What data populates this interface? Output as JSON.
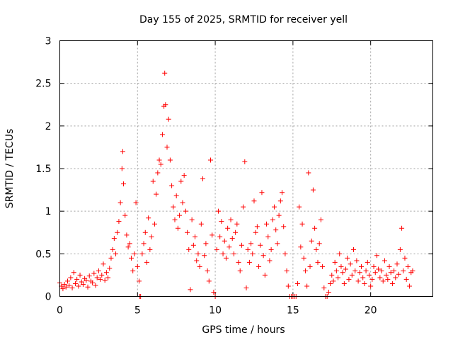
{
  "chart_data": {
    "type": "scatter",
    "title": "Day 155 of 2025, SRMTID for receiver yell",
    "xlabel": "GPS time / hours",
    "ylabel": "SRMTID / TECUs",
    "xlim": [
      0,
      24
    ],
    "ylim": [
      0,
      3
    ],
    "xticks": [
      0,
      5,
      10,
      15,
      20
    ],
    "yticks": [
      0,
      0.5,
      1,
      1.5,
      2,
      2.5,
      3
    ],
    "xtick_labels": [
      "0",
      "5",
      "10",
      "15",
      "20"
    ],
    "ytick_labels": [
      "0",
      "0.5",
      "1",
      "1.5",
      "2",
      "2.5",
      "3"
    ],
    "grid": true,
    "marker": "+",
    "color": "#ff0000",
    "series": [
      {
        "name": "SRMTID",
        "points": [
          [
            0.0,
            0.16
          ],
          [
            0.1,
            0.12
          ],
          [
            0.2,
            0.09
          ],
          [
            0.3,
            0.14
          ],
          [
            0.4,
            0.11
          ],
          [
            0.5,
            0.18
          ],
          [
            0.6,
            0.13
          ],
          [
            0.7,
            0.22
          ],
          [
            0.8,
            0.1
          ],
          [
            0.9,
            0.28
          ],
          [
            1.0,
            0.15
          ],
          [
            1.1,
            0.2
          ],
          [
            1.2,
            0.12
          ],
          [
            1.3,
            0.25
          ],
          [
            1.4,
            0.17
          ],
          [
            1.5,
            0.14
          ],
          [
            1.6,
            0.21
          ],
          [
            1.7,
            0.19
          ],
          [
            1.8,
            0.11
          ],
          [
            1.9,
            0.24
          ],
          [
            2.0,
            0.18
          ],
          [
            2.1,
            0.16
          ],
          [
            2.2,
            0.27
          ],
          [
            2.3,
            0.13
          ],
          [
            2.4,
            0.22
          ],
          [
            2.5,
            0.3
          ],
          [
            2.6,
            0.2
          ],
          [
            2.7,
            0.25
          ],
          [
            2.8,
            0.38
          ],
          [
            2.9,
            0.19
          ],
          [
            3.0,
            0.28
          ],
          [
            3.1,
            0.22
          ],
          [
            3.2,
            0.33
          ],
          [
            3.3,
            0.45
          ],
          [
            3.4,
            0.55
          ],
          [
            3.5,
            0.68
          ],
          [
            3.6,
            0.5
          ],
          [
            3.7,
            0.75
          ],
          [
            3.8,
            0.88
          ],
          [
            3.9,
            1.1
          ],
          [
            4.0,
            1.5
          ],
          [
            4.05,
            1.7
          ],
          [
            4.1,
            1.32
          ],
          [
            4.2,
            0.95
          ],
          [
            4.3,
            0.72
          ],
          [
            4.4,
            0.58
          ],
          [
            4.5,
            0.62
          ],
          [
            4.6,
            0.45
          ],
          [
            4.7,
            0.3
          ],
          [
            4.8,
            0.5
          ],
          [
            4.9,
            1.1
          ],
          [
            5.0,
            0.35
          ],
          [
            5.1,
            0.18
          ],
          [
            5.15,
            0.0
          ],
          [
            5.2,
            0.0
          ],
          [
            5.3,
            0.5
          ],
          [
            5.4,
            0.62
          ],
          [
            5.5,
            0.75
          ],
          [
            5.6,
            0.4
          ],
          [
            5.7,
            0.92
          ],
          [
            5.8,
            0.55
          ],
          [
            5.9,
            0.7
          ],
          [
            6.0,
            1.35
          ],
          [
            6.1,
            0.85
          ],
          [
            6.2,
            1.2
          ],
          [
            6.3,
            1.45
          ],
          [
            6.4,
            1.6
          ],
          [
            6.5,
            1.55
          ],
          [
            6.6,
            1.9
          ],
          [
            6.7,
            2.23
          ],
          [
            6.75,
            2.62
          ],
          [
            6.8,
            2.25
          ],
          [
            6.9,
            1.75
          ],
          [
            7.0,
            2.08
          ],
          [
            7.1,
            1.6
          ],
          [
            7.2,
            1.3
          ],
          [
            7.3,
            1.05
          ],
          [
            7.4,
            0.9
          ],
          [
            7.5,
            1.18
          ],
          [
            7.6,
            0.8
          ],
          [
            7.7,
            0.95
          ],
          [
            7.8,
            1.35
          ],
          [
            7.9,
            1.1
          ],
          [
            8.0,
            1.42
          ],
          [
            8.1,
            1.0
          ],
          [
            8.2,
            0.75
          ],
          [
            8.3,
            0.55
          ],
          [
            8.4,
            0.08
          ],
          [
            8.5,
            0.9
          ],
          [
            8.6,
            0.6
          ],
          [
            8.7,
            0.7
          ],
          [
            8.8,
            0.42
          ],
          [
            8.9,
            0.5
          ],
          [
            9.0,
            0.35
          ],
          [
            9.1,
            0.85
          ],
          [
            9.2,
            1.38
          ],
          [
            9.3,
            0.48
          ],
          [
            9.4,
            0.62
          ],
          [
            9.5,
            0.3
          ],
          [
            9.6,
            0.18
          ],
          [
            9.7,
            1.6
          ],
          [
            9.8,
            0.72
          ],
          [
            9.9,
            0.05
          ],
          [
            10.0,
            0.0
          ],
          [
            10.1,
            0.55
          ],
          [
            10.2,
            1.0
          ],
          [
            10.3,
            0.7
          ],
          [
            10.4,
            0.88
          ],
          [
            10.5,
            0.5
          ],
          [
            10.6,
            0.65
          ],
          [
            10.7,
            0.45
          ],
          [
            10.8,
            0.8
          ],
          [
            10.9,
            0.58
          ],
          [
            11.0,
            0.9
          ],
          [
            11.1,
            0.68
          ],
          [
            11.2,
            0.5
          ],
          [
            11.3,
            0.75
          ],
          [
            11.4,
            0.85
          ],
          [
            11.5,
            0.4
          ],
          [
            11.6,
            0.3
          ],
          [
            11.7,
            0.6
          ],
          [
            11.8,
            1.05
          ],
          [
            11.9,
            1.58
          ],
          [
            12.0,
            0.1
          ],
          [
            12.1,
            0.55
          ],
          [
            12.2,
            0.4
          ],
          [
            12.3,
            0.62
          ],
          [
            12.4,
            0.5
          ],
          [
            12.5,
            1.12
          ],
          [
            12.6,
            0.75
          ],
          [
            12.7,
            0.82
          ],
          [
            12.8,
            0.35
          ],
          [
            12.9,
            0.6
          ],
          [
            13.0,
            1.22
          ],
          [
            13.1,
            0.48
          ],
          [
            13.2,
            0.25
          ],
          [
            13.3,
            0.85
          ],
          [
            13.4,
            0.7
          ],
          [
            13.5,
            0.42
          ],
          [
            13.6,
            0.55
          ],
          [
            13.7,
            0.9
          ],
          [
            13.8,
            1.05
          ],
          [
            13.9,
            0.78
          ],
          [
            14.0,
            0.62
          ],
          [
            14.1,
            0.95
          ],
          [
            14.2,
            1.12
          ],
          [
            14.3,
            1.22
          ],
          [
            14.4,
            0.82
          ],
          [
            14.5,
            0.5
          ],
          [
            14.6,
            0.3
          ],
          [
            14.7,
            0.12
          ],
          [
            14.8,
            0.0
          ],
          [
            14.9,
            0.0
          ],
          [
            15.0,
            0.0
          ],
          [
            15.1,
            0.0
          ],
          [
            15.2,
            0.0
          ],
          [
            15.3,
            0.15
          ],
          [
            15.4,
            1.05
          ],
          [
            15.5,
            0.58
          ],
          [
            15.6,
            0.85
          ],
          [
            15.7,
            0.45
          ],
          [
            15.8,
            0.3
          ],
          [
            15.9,
            0.12
          ],
          [
            16.0,
            1.45
          ],
          [
            16.1,
            0.35
          ],
          [
            16.2,
            0.65
          ],
          [
            16.3,
            1.25
          ],
          [
            16.4,
            0.8
          ],
          [
            16.5,
            0.55
          ],
          [
            16.6,
            0.4
          ],
          [
            16.7,
            0.62
          ],
          [
            16.8,
            0.9
          ],
          [
            16.9,
            0.35
          ],
          [
            17.0,
            0.1
          ],
          [
            17.1,
            0.0
          ],
          [
            17.2,
            0.0
          ],
          [
            17.3,
            0.05
          ],
          [
            17.4,
            0.15
          ],
          [
            17.5,
            0.25
          ],
          [
            17.6,
            0.18
          ],
          [
            17.7,
            0.4
          ],
          [
            17.8,
            0.3
          ],
          [
            17.9,
            0.22
          ],
          [
            18.0,
            0.5
          ],
          [
            18.1,
            0.35
          ],
          [
            18.2,
            0.28
          ],
          [
            18.3,
            0.15
          ],
          [
            18.4,
            0.32
          ],
          [
            18.5,
            0.45
          ],
          [
            18.6,
            0.2
          ],
          [
            18.7,
            0.38
          ],
          [
            18.8,
            0.25
          ],
          [
            18.9,
            0.55
          ],
          [
            19.0,
            0.3
          ],
          [
            19.1,
            0.42
          ],
          [
            19.2,
            0.18
          ],
          [
            19.3,
            0.28
          ],
          [
            19.4,
            0.35
          ],
          [
            19.5,
            0.22
          ],
          [
            19.6,
            0.15
          ],
          [
            19.7,
            0.3
          ],
          [
            19.8,
            0.4
          ],
          [
            19.9,
            0.25
          ],
          [
            20.0,
            0.12
          ],
          [
            20.1,
            0.2
          ],
          [
            20.2,
            0.35
          ],
          [
            20.3,
            0.28
          ],
          [
            20.4,
            0.48
          ],
          [
            20.5,
            0.32
          ],
          [
            20.6,
            0.22
          ],
          [
            20.7,
            0.3
          ],
          [
            20.8,
            0.18
          ],
          [
            20.9,
            0.42
          ],
          [
            21.0,
            0.25
          ],
          [
            21.1,
            0.2
          ],
          [
            21.2,
            0.35
          ],
          [
            21.3,
            0.28
          ],
          [
            21.4,
            0.15
          ],
          [
            21.5,
            0.3
          ],
          [
            21.6,
            0.22
          ],
          [
            21.7,
            0.38
          ],
          [
            21.8,
            0.26
          ],
          [
            21.9,
            0.55
          ],
          [
            22.0,
            0.8
          ],
          [
            22.1,
            0.3
          ],
          [
            22.2,
            0.45
          ],
          [
            22.3,
            0.2
          ],
          [
            22.4,
            0.35
          ],
          [
            22.5,
            0.12
          ],
          [
            22.6,
            0.28
          ],
          [
            22.7,
            0.3
          ]
        ]
      }
    ]
  }
}
